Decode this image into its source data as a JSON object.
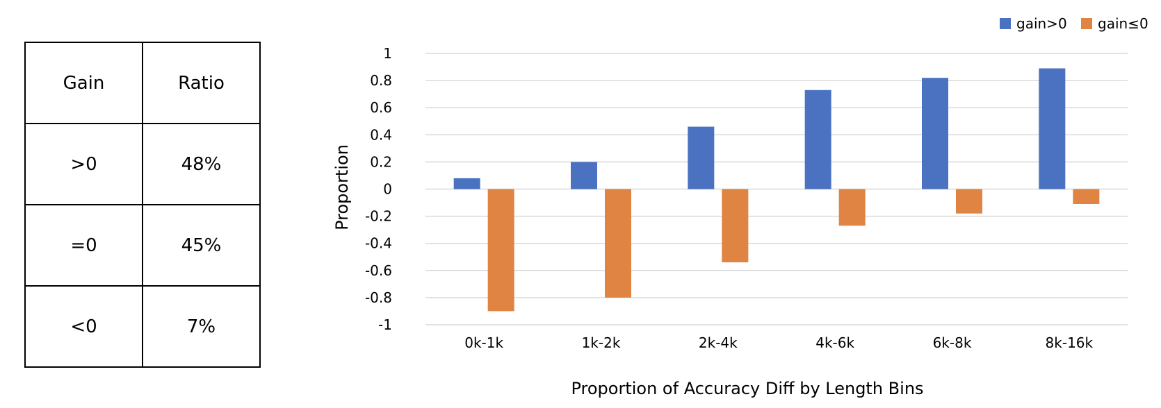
{
  "table": {
    "headers": [
      "Gain",
      "Ratio"
    ],
    "rows": [
      {
        "gain": ">0",
        "ratio": "48%"
      },
      {
        "gain": "=0",
        "ratio": "45%"
      },
      {
        "gain": "<0",
        "ratio": "7%"
      }
    ]
  },
  "chart_data": {
    "type": "bar",
    "title": "",
    "xlabel": "Proportion of Accuracy Diff by Length Bins",
    "ylabel": "Proportion",
    "categories": [
      "0k-1k",
      "1k-2k",
      "2k-4k",
      "4k-6k",
      "6k-8k",
      "8k-16k"
    ],
    "series": [
      {
        "name": "gain>0",
        "color": "#4a72c0",
        "values": [
          0.08,
          0.2,
          0.46,
          0.73,
          0.82,
          0.89
        ]
      },
      {
        "name": "gain≤0",
        "color": "#e08443",
        "values": [
          -0.9,
          -0.8,
          -0.54,
          -0.27,
          -0.18,
          -0.11
        ]
      }
    ],
    "ylim": [
      -1,
      1
    ],
    "yticks": [
      1,
      0.8,
      0.6,
      0.4,
      0.2,
      0,
      -0.2,
      -0.4,
      -0.6,
      -0.8,
      -1
    ],
    "ytick_labels": [
      "1",
      "0.8",
      "0.6",
      "0.4",
      "0.2",
      "0",
      "-0.2",
      "-0.4",
      "-0.6",
      "-0.8",
      "-1"
    ],
    "grid": true,
    "legend_position": "top-right",
    "gridline_color": "#d9d9d9"
  }
}
